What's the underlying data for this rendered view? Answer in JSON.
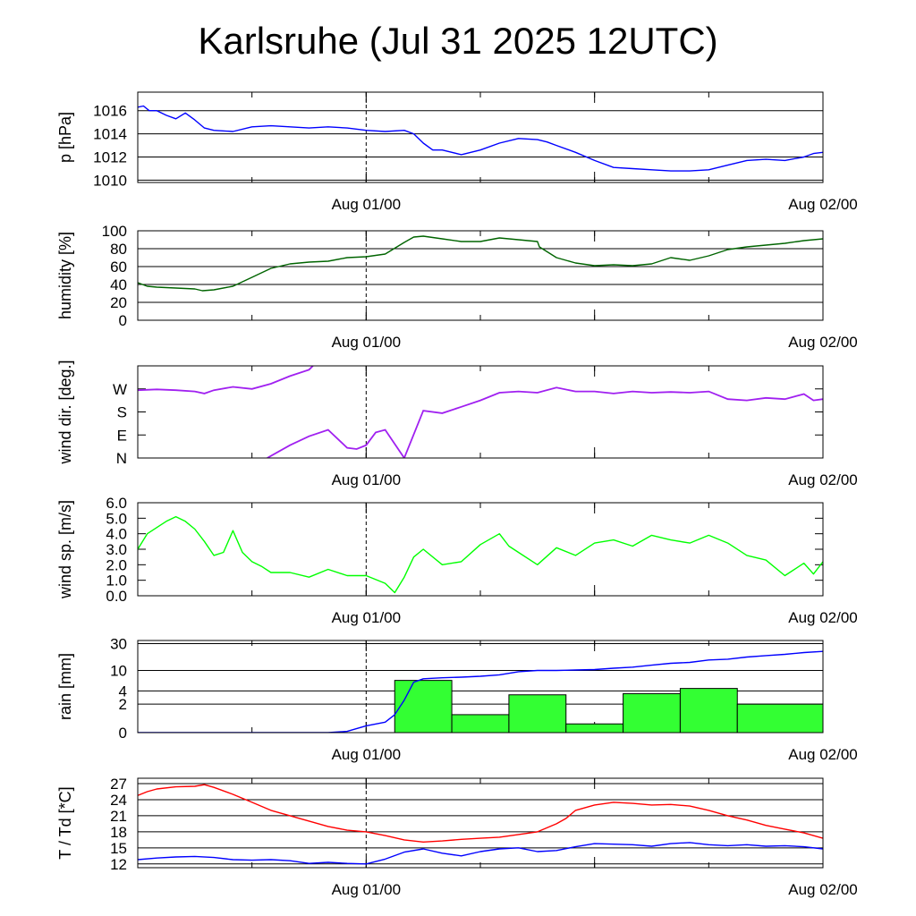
{
  "title": "Karlsruhe (Jul 31 2025 12UTC)",
  "x_tick_labels": [
    "Aug 01/00",
    "Aug 02/00"
  ],
  "colors": {
    "pressure": "#0000ff",
    "humidity": "#006400",
    "wind_dir": "#a020f0",
    "wind_speed": "#00ff00",
    "rain_bars": "#33ff33",
    "rain_line": "#0000ff",
    "temperature": "#ff0000",
    "dewpoint": "#0000ff"
  },
  "chart_data": [
    {
      "type": "line",
      "ylabel": "p [hPa]",
      "x_unit": "hours since Jul 31 12UTC",
      "xlim": [
        0,
        36
      ],
      "ylim": [
        1009.8,
        1017.6
      ],
      "yticks": [
        1010,
        1012,
        1014,
        1016
      ],
      "ytick_labels": [
        "1010",
        "1012",
        "1014",
        "1016"
      ],
      "grid": true,
      "series": [
        {
          "x": [
            0,
            0.3,
            0.6,
            1,
            1.5,
            2,
            2.5,
            3,
            3.5,
            4,
            5,
            6,
            7,
            8,
            9,
            10,
            11,
            12,
            13,
            14,
            14.5,
            15,
            15.5,
            16,
            17,
            18,
            19,
            20,
            21,
            21.5,
            22,
            23,
            24,
            25,
            26,
            27,
            28,
            29,
            30,
            31,
            32,
            33,
            34,
            35,
            35.5,
            36
          ],
          "y": [
            1016.3,
            1016.4,
            1016.0,
            1016.0,
            1015.6,
            1015.3,
            1015.8,
            1015.2,
            1014.5,
            1014.3,
            1014.2,
            1014.6,
            1014.7,
            1014.6,
            1014.5,
            1014.6,
            1014.5,
            1014.3,
            1014.2,
            1014.3,
            1014.0,
            1013.2,
            1012.6,
            1012.6,
            1012.2,
            1012.6,
            1013.2,
            1013.6,
            1013.5,
            1013.3,
            1013.0,
            1012.4,
            1011.7,
            1011.1,
            1011.0,
            1010.9,
            1010.8,
            1010.8,
            1010.9,
            1011.3,
            1011.7,
            1011.8,
            1011.7,
            1012.0,
            1012.3,
            1012.4
          ]
        }
      ]
    },
    {
      "type": "line",
      "ylabel": "humidity [%]",
      "x_unit": "hours since Jul 31 12UTC",
      "xlim": [
        0,
        36
      ],
      "ylim": [
        0,
        100
      ],
      "yticks": [
        0,
        20,
        40,
        60,
        80,
        100
      ],
      "ytick_labels": [
        "0",
        "20",
        "40",
        "60",
        "80",
        "100"
      ],
      "grid": true,
      "series": [
        {
          "x": [
            0,
            0.5,
            1,
            2,
            3,
            3.4,
            4,
            5,
            6,
            7,
            8,
            9,
            10,
            11,
            12,
            13,
            14,
            14.5,
            15,
            16,
            17,
            18,
            19,
            20,
            21,
            21.1,
            22,
            23,
            24,
            25,
            26,
            27,
            28,
            29,
            30,
            31,
            32,
            33,
            34,
            35,
            36
          ],
          "y": [
            42,
            38,
            37,
            36,
            35,
            33,
            34,
            38,
            48,
            58,
            63,
            65,
            66,
            70,
            71,
            74,
            87,
            93,
            94,
            91,
            88,
            88,
            92,
            90,
            88,
            82,
            70,
            64,
            61,
            62,
            61,
            63,
            70,
            67,
            72,
            79,
            82,
            84,
            86,
            89,
            91
          ]
        }
      ]
    },
    {
      "type": "scatter",
      "ylabel": "wind dir. [deg.]",
      "x_unit": "hours since Jul 31 12UTC",
      "xlim": [
        0,
        36
      ],
      "ylim": [
        0,
        360
      ],
      "yticks": [
        0,
        90,
        180,
        270
      ],
      "ytick_labels": [
        "N",
        "E",
        "S",
        "W"
      ],
      "grid": false,
      "series": [
        {
          "x": [
            0,
            1,
            2,
            3,
            3.5,
            4,
            5,
            6,
            7,
            8,
            9,
            9.2
          ],
          "y": [
            265,
            268,
            265,
            260,
            252,
            265,
            278,
            270,
            290,
            320,
            345,
            360
          ]
        },
        {
          "x": [
            6.8,
            8,
            9,
            10,
            11,
            11.5,
            12,
            12.5,
            13,
            14,
            15,
            16,
            17,
            18,
            19,
            20,
            21,
            22,
            23,
            24,
            25,
            26,
            27,
            28,
            29,
            30,
            31,
            32,
            33,
            34,
            35,
            35.5,
            36
          ],
          "y": [
            0,
            50,
            85,
            110,
            40,
            35,
            50,
            100,
            110,
            0,
            185,
            175,
            200,
            225,
            255,
            260,
            255,
            275,
            260,
            260,
            252,
            260,
            255,
            258,
            255,
            260,
            230,
            225,
            235,
            230,
            250,
            225,
            230
          ]
        }
      ]
    },
    {
      "type": "line",
      "ylabel": "wind sp. [m/s]",
      "x_unit": "hours since Jul 31 12UTC",
      "xlim": [
        0,
        36
      ],
      "ylim": [
        0,
        6
      ],
      "yticks": [
        0,
        1,
        2,
        3,
        4,
        5,
        6
      ],
      "ytick_labels": [
        "0.0",
        "1.0",
        "2.0",
        "3.0",
        "4.0",
        "5.0",
        "6.0"
      ],
      "grid": false,
      "series": [
        {
          "x": [
            0,
            0.5,
            1,
            1.5,
            2,
            2.5,
            3,
            3.5,
            4,
            4.5,
            5,
            5.5,
            6,
            6.5,
            7,
            8,
            9,
            10,
            11,
            12,
            13,
            13.5,
            14,
            14.5,
            15,
            16,
            17,
            18,
            19,
            19.5,
            20,
            21,
            22,
            23,
            24,
            25,
            26,
            27,
            28,
            29,
            30,
            31,
            32,
            33,
            34,
            35,
            35.5,
            36
          ],
          "y": [
            3.0,
            4.0,
            4.4,
            4.8,
            5.1,
            4.8,
            4.3,
            3.5,
            2.6,
            2.8,
            4.2,
            2.8,
            2.2,
            1.9,
            1.5,
            1.5,
            1.2,
            1.7,
            1.3,
            1.3,
            0.8,
            0.2,
            1.2,
            2.5,
            3.0,
            2.0,
            2.2,
            3.3,
            4.0,
            3.2,
            2.8,
            2.0,
            3.1,
            2.6,
            3.4,
            3.6,
            3.2,
            3.9,
            3.6,
            3.4,
            3.9,
            3.4,
            2.6,
            2.3,
            1.3,
            2.1,
            1.4,
            2.2
          ]
        }
      ]
    },
    {
      "type": "bar",
      "ylabel": "rain [mm]",
      "x_unit": "hours since Jul 31 12UTC",
      "xlim": [
        0,
        36
      ],
      "scale": "transformed",
      "yticks": [
        0,
        2,
        4,
        10,
        30
      ],
      "ytick_labels": [
        "0",
        "2",
        "4",
        "10",
        "30"
      ],
      "grid": true,
      "bars": [
        {
          "x0": 13.5,
          "x1": 16.5,
          "value": 6.5
        },
        {
          "x0": 16.5,
          "x1": 19.5,
          "value": 1.0
        },
        {
          "x0": 19.5,
          "x1": 22.5,
          "value": 3.3
        },
        {
          "x0": 22.5,
          "x1": 25.5,
          "value": 0.4
        },
        {
          "x0": 25.5,
          "x1": 28.5,
          "value": 3.5
        },
        {
          "x0": 28.5,
          "x1": 31.5,
          "value": 4.5
        },
        {
          "x0": 31.5,
          "x1": 36,
          "value": 2.0
        }
      ],
      "series": [
        {
          "x": [
            0,
            10,
            11,
            12,
            13,
            13.5,
            14,
            14.5,
            15,
            16,
            17,
            18,
            19,
            20,
            21,
            22,
            23,
            24,
            25,
            26,
            27,
            28,
            29,
            30,
            31,
            32,
            33,
            34,
            35,
            36
          ],
          "y": [
            0,
            0,
            0.05,
            0.3,
            0.5,
            1.0,
            2.5,
            6.0,
            7.0,
            7.3,
            7.5,
            7.8,
            8.3,
            9.5,
            10.0,
            10.0,
            10.2,
            10.4,
            11.0,
            11.5,
            12.5,
            13.5,
            14.0,
            15.5,
            16.0,
            17.5,
            18.5,
            19.5,
            21.0,
            22.0
          ]
        }
      ]
    },
    {
      "type": "line",
      "ylabel": "T / Td [*C]",
      "x_unit": "hours since Jul 31 12UTC",
      "xlim": [
        0,
        36
      ],
      "ylim": [
        11.3,
        28.0
      ],
      "yticks": [
        12,
        15,
        18,
        21,
        24,
        27
      ],
      "ytick_labels": [
        "12",
        "15",
        "18",
        "21",
        "24",
        "27"
      ],
      "grid": true,
      "series": [
        {
          "x": [
            0,
            0.5,
            1,
            2,
            3,
            3.5,
            4,
            5,
            6,
            7,
            8,
            9,
            10,
            11,
            12,
            13,
            14,
            15,
            16,
            17,
            18,
            19,
            20,
            21,
            22,
            22.5,
            23,
            24,
            25,
            26,
            27,
            28,
            29,
            30,
            31,
            32,
            33,
            34,
            35,
            36
          ],
          "y": [
            24.8,
            25.5,
            26.0,
            26.4,
            26.5,
            26.8,
            26.3,
            25.0,
            23.5,
            22.0,
            21.0,
            20.0,
            19.0,
            18.3,
            18.0,
            17.3,
            16.5,
            16.1,
            16.3,
            16.6,
            16.8,
            17.0,
            17.5,
            18.0,
            19.5,
            20.5,
            22.0,
            23.0,
            23.5,
            23.3,
            23.0,
            23.1,
            22.8,
            22.0,
            21.0,
            20.2,
            19.2,
            18.5,
            17.8,
            16.8
          ]
        },
        {
          "x": [
            0,
            1,
            2,
            3,
            4,
            5,
            6,
            7,
            8,
            9,
            10,
            11,
            12,
            13,
            14,
            15,
            16,
            17,
            18,
            19,
            20,
            21,
            22,
            23,
            24,
            25,
            26,
            27,
            28,
            29,
            30,
            31,
            32,
            33,
            34,
            35,
            36
          ],
          "y": [
            12.8,
            13.1,
            13.3,
            13.4,
            13.2,
            12.8,
            12.7,
            12.8,
            12.6,
            12.1,
            12.3,
            12.1,
            12.0,
            12.9,
            14.2,
            14.8,
            14.0,
            13.5,
            14.3,
            14.8,
            15.0,
            14.3,
            14.5,
            15.2,
            15.8,
            15.7,
            15.6,
            15.3,
            15.8,
            16.0,
            15.6,
            15.4,
            15.6,
            15.3,
            15.4,
            15.2,
            14.8
          ]
        }
      ]
    }
  ]
}
